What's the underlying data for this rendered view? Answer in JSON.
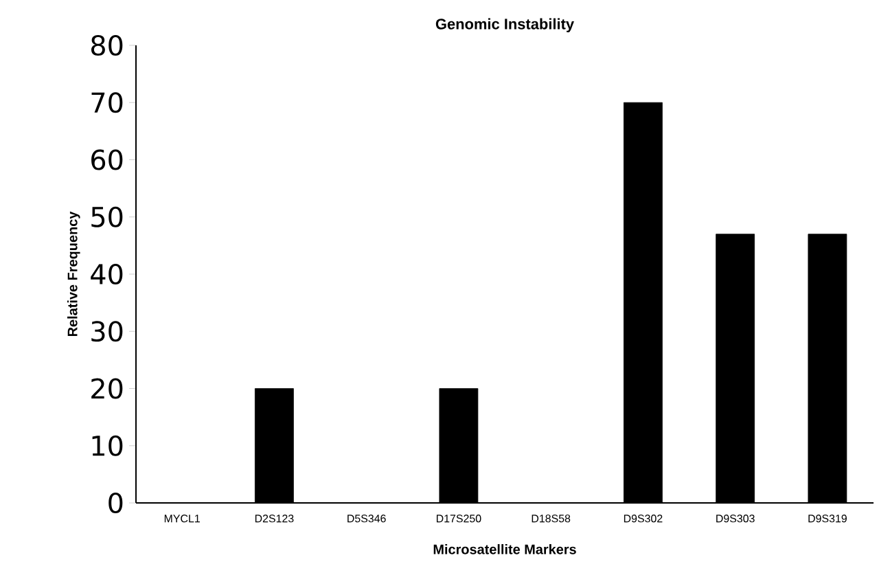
{
  "chart_data": {
    "type": "bar",
    "title": "Genomic Instability",
    "xlabel": "Microsatellite Markers",
    "ylabel": "Relative Frequency",
    "categories": [
      "MYCL1",
      "D2S123",
      "D5S346",
      "D17S250",
      "D18S58",
      "D9S302",
      "D9S303",
      "D9S319"
    ],
    "values": [
      0,
      20,
      0,
      20,
      0,
      70,
      47,
      47
    ],
    "color": "#000000",
    "ylim": [
      0,
      80
    ],
    "yticks": [
      0,
      10,
      20,
      30,
      40,
      50,
      60,
      70,
      80
    ]
  }
}
